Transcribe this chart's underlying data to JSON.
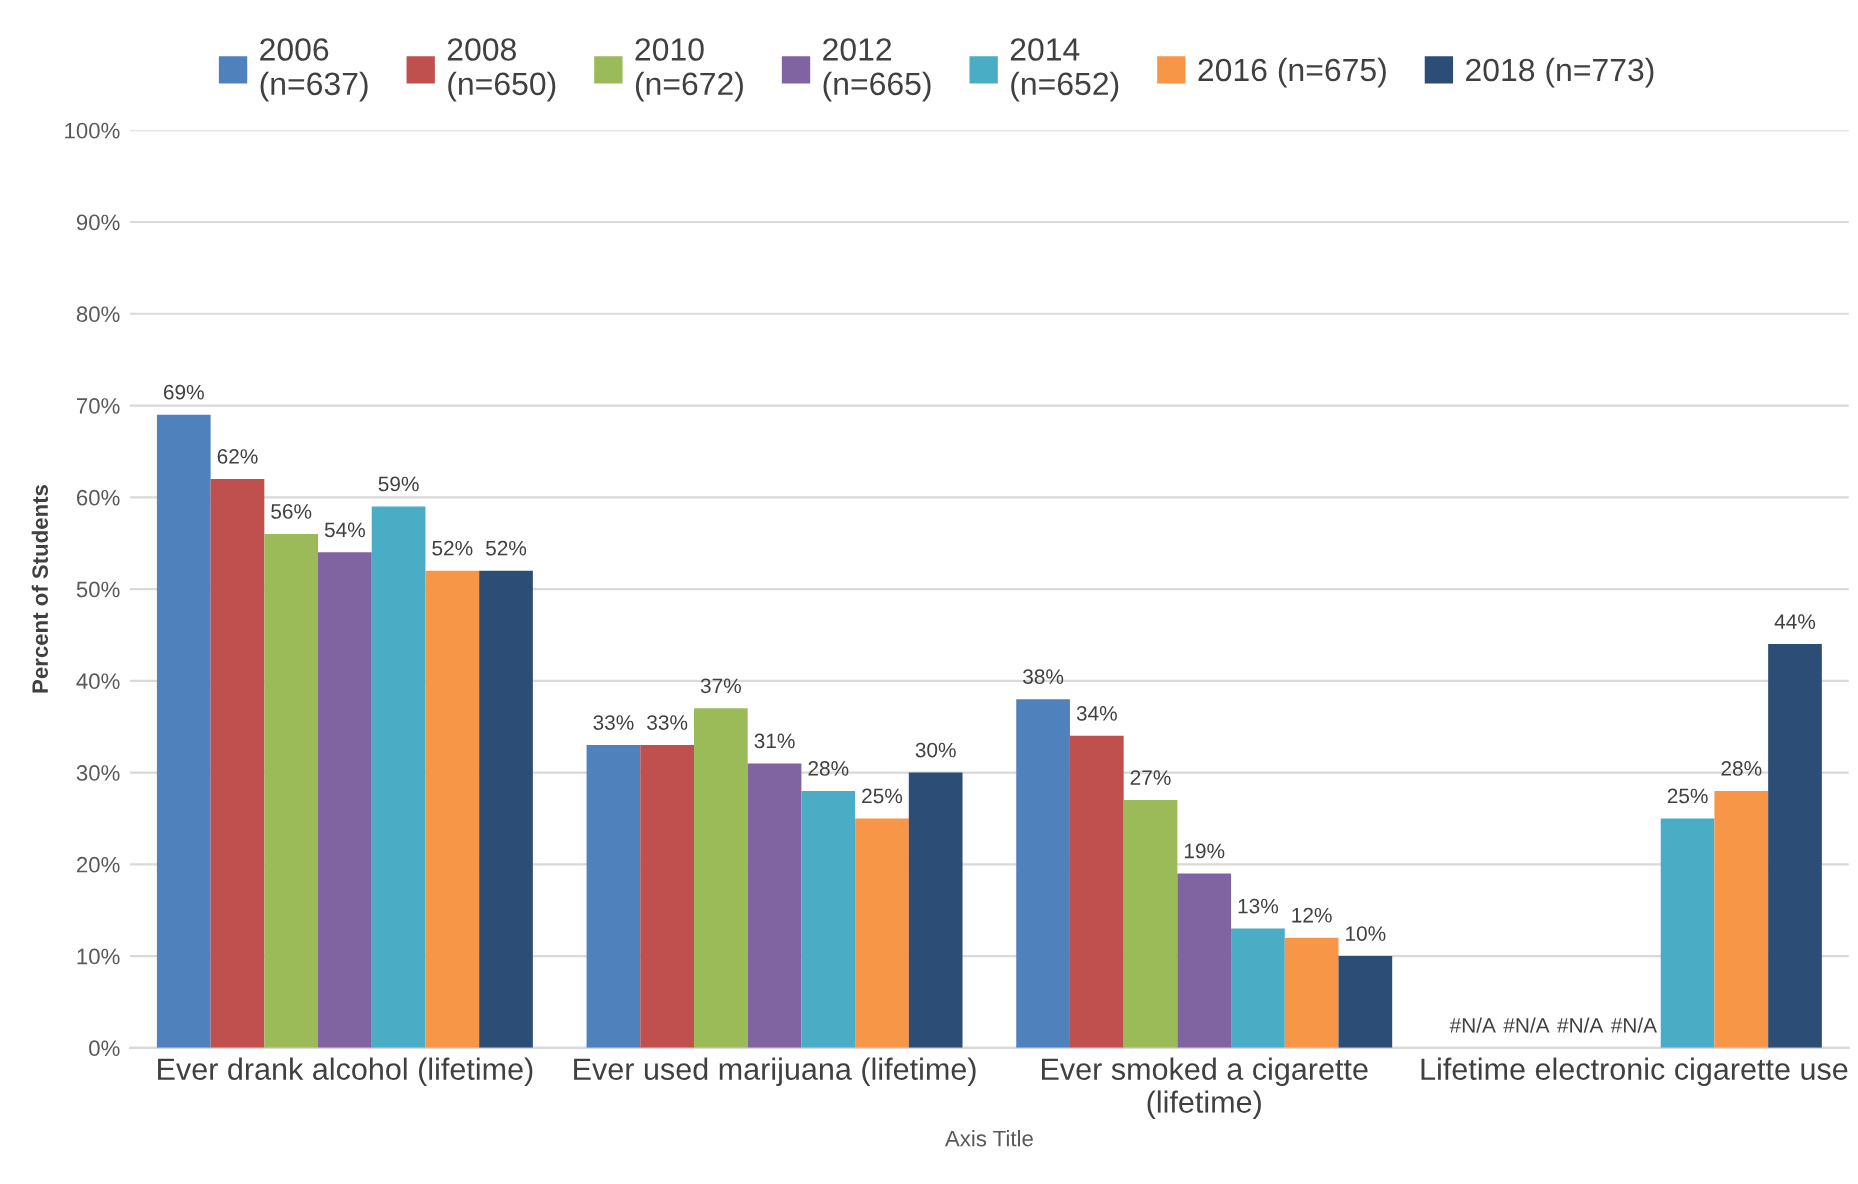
{
  "chart_data": {
    "type": "bar",
    "xlabel": "Axis Title",
    "ylabel": "Percent of Students",
    "categories": [
      "Ever drank alcohol (lifetime)",
      "Ever used marijuana (lifetime)",
      "Ever smoked a cigarette\n(lifetime)",
      "Lifetime electronic cigarette use"
    ],
    "series": [
      {
        "name": "2006\n(n=637)",
        "color": "#4f81bd",
        "values": [
          69,
          33,
          38,
          null
        ],
        "value_labels": [
          "69%",
          "33%",
          "38%",
          "#N/A"
        ]
      },
      {
        "name": "2008\n(n=650)",
        "color": "#c0504d",
        "values": [
          62,
          33,
          34,
          null
        ],
        "value_labels": [
          "62%",
          "33%",
          "34%",
          "#N/A"
        ]
      },
      {
        "name": "2010\n(n=672)",
        "color": "#9bbb59",
        "values": [
          56,
          37,
          27,
          null
        ],
        "value_labels": [
          "56%",
          "37%",
          "27%",
          "#N/A"
        ]
      },
      {
        "name": "2012\n(n=665)",
        "color": "#8064a2",
        "values": [
          54,
          31,
          19,
          null
        ],
        "value_labels": [
          "54%",
          "31%",
          "19%",
          "#N/A"
        ]
      },
      {
        "name": "2014\n(n=652)",
        "color": "#4bacc6",
        "values": [
          59,
          28,
          13,
          25
        ],
        "value_labels": [
          "59%",
          "28%",
          "13%",
          "25%"
        ]
      },
      {
        "name": "2016 (n=675)",
        "color": "#f79646",
        "values": [
          52,
          25,
          12,
          28
        ],
        "value_labels": [
          "52%",
          "25%",
          "12%",
          "28%"
        ]
      },
      {
        "name": "2018 (n=773)",
        "color": "#2c4d75",
        "values": [
          52,
          30,
          10,
          44
        ],
        "value_labels": [
          "52%",
          "30%",
          "10%",
          "44%"
        ]
      }
    ],
    "ylim": [
      0,
      100
    ],
    "yticks": [
      {
        "value": 0,
        "label": "0%"
      },
      {
        "value": 10,
        "label": "10%"
      },
      {
        "value": 20,
        "label": "20%"
      },
      {
        "value": 30,
        "label": "30%"
      },
      {
        "value": 40,
        "label": "40%"
      },
      {
        "value": 50,
        "label": "50%"
      },
      {
        "value": 60,
        "label": "60%"
      },
      {
        "value": 70,
        "label": "70%"
      },
      {
        "value": 80,
        "label": "80%"
      },
      {
        "value": 90,
        "label": "90%"
      },
      {
        "value": 100,
        "label": "100%"
      }
    ],
    "grid": "y",
    "legend": "top"
  }
}
